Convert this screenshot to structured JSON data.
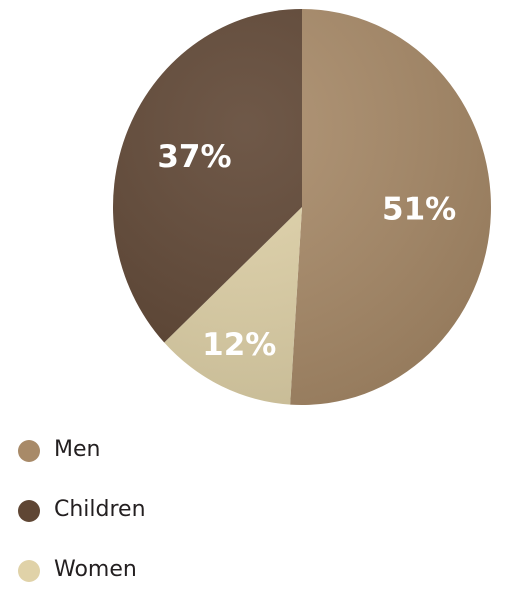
{
  "chart_data": {
    "type": "pie",
    "categories": [
      "Men",
      "Women",
      "Children"
    ],
    "values": [
      51,
      12,
      37
    ],
    "labels": [
      "51%",
      "12%",
      "37%"
    ],
    "colors": [
      "#a88a68",
      "#e0d2a8",
      "#5f4634"
    ],
    "legend_placement": "bottom-left",
    "legend": [
      {
        "name": "Men",
        "color": "#a88a68"
      },
      {
        "name": "Children",
        "color": "#5f4634"
      },
      {
        "name": "Women",
        "color": "#e0d2a8"
      }
    ]
  }
}
